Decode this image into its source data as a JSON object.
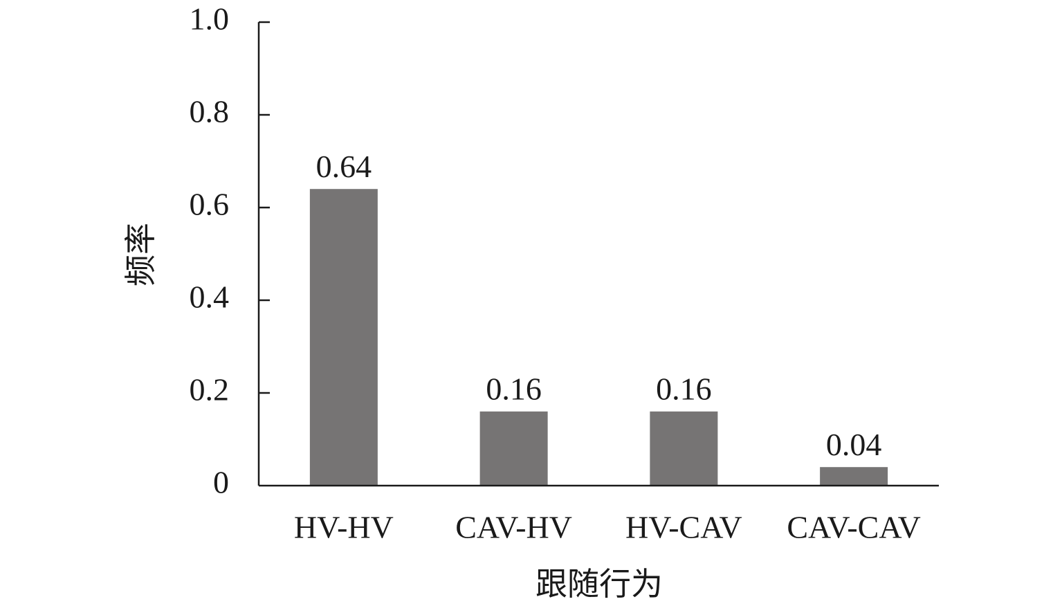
{
  "chart_data": {
    "type": "bar",
    "categories": [
      "HV-HV",
      "CAV-HV",
      "HV-CAV",
      "CAV-CAV"
    ],
    "values": [
      0.64,
      0.16,
      0.16,
      0.04
    ],
    "data_labels": [
      "0.64",
      "0.16",
      "0.16",
      "0.04"
    ],
    "xlabel": "跟随行为",
    "ylabel": "频率",
    "ylim": [
      0,
      1.0
    ],
    "yticks": [
      0,
      0.2,
      0.4,
      0.6,
      0.8,
      1.0
    ],
    "ytick_labels": [
      "0",
      "0.2",
      "0.4",
      "0.6",
      "0.8",
      "1.0"
    ],
    "grid": false,
    "bar_color": "#767474",
    "axis_color": "#1a1a1a"
  }
}
